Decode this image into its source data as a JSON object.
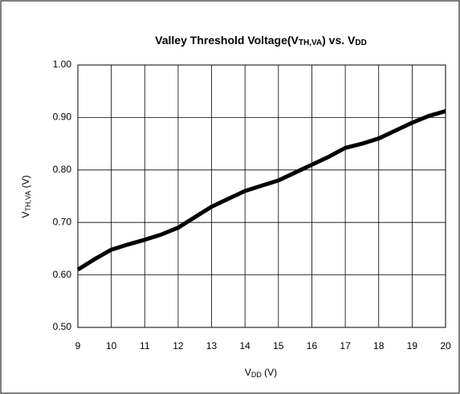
{
  "chart_data": {
    "type": "line",
    "title": [
      "Valley Threshold Voltage(V",
      "TH,VA",
      ") vs. V",
      "DD"
    ],
    "x_label": [
      "V",
      "DD",
      " (V)"
    ],
    "y_label": [
      "V",
      "TH,VA",
      " (V)"
    ],
    "x": [
      9,
      9.5,
      10,
      10.5,
      11,
      11.5,
      12,
      12.5,
      13,
      13.5,
      14,
      14.5,
      15,
      15.5,
      16,
      16.5,
      17,
      17.5,
      18,
      18.5,
      19,
      19.5,
      20
    ],
    "series": [
      {
        "color": "#000000",
        "values": [
          0.61,
          0.63,
          0.648,
          0.658,
          0.667,
          0.677,
          0.69,
          0.71,
          0.73,
          0.745,
          0.76,
          0.77,
          0.78,
          0.795,
          0.81,
          0.825,
          0.842,
          0.85,
          0.86,
          0.875,
          0.89,
          0.903,
          0.912
        ]
      }
    ],
    "xlim": [
      9,
      20
    ],
    "xticks": [
      9,
      10,
      11,
      12,
      13,
      14,
      15,
      16,
      17,
      18,
      19,
      20
    ],
    "ylim": [
      0.5,
      1.0
    ],
    "yticks": [
      {
        "value": 0.5,
        "label": "0.50"
      },
      {
        "value": 0.6,
        "label": "0.60"
      },
      {
        "value": 0.7,
        "label": "0.70"
      },
      {
        "value": 0.8,
        "label": "0.80"
      },
      {
        "value": 0.9,
        "label": "0.90"
      },
      {
        "value": 1.0,
        "label": "1.00"
      }
    ],
    "grid": true
  }
}
